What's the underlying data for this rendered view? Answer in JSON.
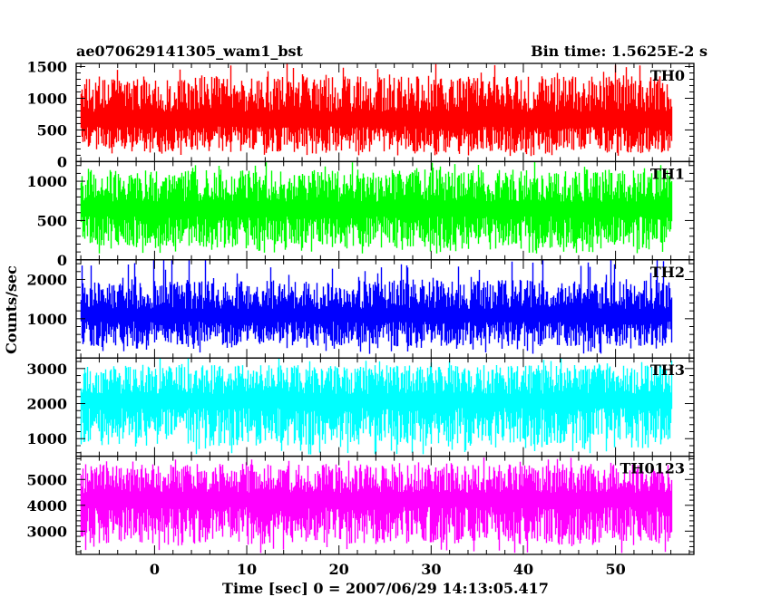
{
  "title_left": "ae070629141305_wam1_bst",
  "title_right": "Bin time: 1.5625E-2 s",
  "ylabel": "Counts/sec",
  "xlabel": "Time [sec] 0 = 2007/06/29 14:13:05.417",
  "chart_data": {
    "type": "line",
    "xlim": [
      -8.5,
      58.5
    ],
    "x_range": [
      -8,
      56
    ],
    "bin_time": 0.015625,
    "x_major_ticks": [
      0,
      10,
      20,
      30,
      40,
      50
    ],
    "x_minor_step": 2,
    "series": [
      {
        "name": "TH0",
        "color": "#ff0000",
        "ylim": [
          0,
          1550
        ],
        "y_major_ticks": [
          0,
          500,
          1000,
          1500
        ],
        "y_minor_step": 100,
        "mean": 600,
        "min": 80,
        "max": 1550,
        "typical_range": [
          150,
          1350
        ]
      },
      {
        "name": "TH1",
        "color": "#00ff00",
        "ylim": [
          0,
          1250
        ],
        "y_major_ticks": [
          0,
          500,
          1000
        ],
        "y_minor_step": 100,
        "mean": 600,
        "min": 80,
        "max": 1250,
        "typical_range": [
          150,
          1150
        ]
      },
      {
        "name": "TH2",
        "color": "#0000ff",
        "ylim": [
          0,
          2500
        ],
        "y_major_ticks": [
          1000,
          2000
        ],
        "y_minor_step": 200,
        "mean": 1000,
        "min": 100,
        "max": 2550,
        "typical_range": [
          300,
          2000
        ]
      },
      {
        "name": "TH3",
        "color": "#00ffff",
        "ylim": [
          500,
          3300
        ],
        "y_major_ticks": [
          1000,
          2000,
          3000
        ],
        "y_minor_step": 200,
        "mean": 2000,
        "min": 550,
        "max": 3300,
        "typical_range": [
          800,
          3100
        ]
      },
      {
        "name": "TH0123",
        "color": "#ff00ff",
        "ylim": [
          2100,
          5900
        ],
        "y_major_ticks": [
          3000,
          4000,
          5000
        ],
        "y_minor_step": 200,
        "mean": 4100,
        "min": 2150,
        "max": 5900,
        "typical_range": [
          2500,
          5600
        ]
      }
    ]
  }
}
